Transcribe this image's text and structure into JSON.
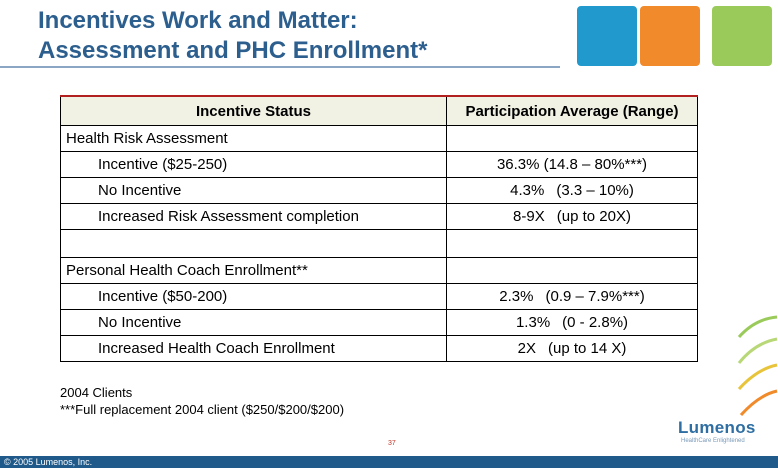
{
  "title": {
    "line1": "Incentives Work and Matter:",
    "line2": "Assessment and PHC Enrollment*"
  },
  "table": {
    "header": {
      "col1": "Incentive Status",
      "col2": "Participation Average (Range)"
    },
    "sections": [
      {
        "label": "Health Risk Assessment",
        "rows": [
          {
            "status": "Incentive ($25-250)",
            "value": "36.3% (14.8 – 80%***)"
          },
          {
            "status": "No Incentive",
            "value": "4.3%",
            "range": "(3.3 – 10%)"
          },
          {
            "status": "Increased Risk Assessment completion",
            "value": "8-9X",
            "range": "(up to 20X)"
          }
        ]
      },
      {
        "label": "Personal Health Coach Enrollment**",
        "rows": [
          {
            "status": "Incentive ($50-200)",
            "value": "2.3%",
            "range": "(0.9 – 7.9%***)"
          },
          {
            "status": "No Incentive",
            "value": "1.3%",
            "range": "(0  - 2.8%)"
          },
          {
            "status": "Increased Health Coach Enrollment",
            "value": "2X",
            "range": "(up to 14 X)"
          }
        ]
      }
    ]
  },
  "notes": {
    "line1": "2004 Clients",
    "line2": "***Full replacement 2004 client ($250/$200/$200)"
  },
  "page_number": "37",
  "copyright": "© 2005 Lumenos, Inc.",
  "logo": {
    "name": "Lumenos",
    "tagline": "HealthCare Enlightened"
  },
  "colors": {
    "title": "#2c5e8e",
    "square_blue": "#2299cc",
    "square_orange": "#f08a2a",
    "square_green": "#9acb5a",
    "footer": "#1f5a8b"
  }
}
